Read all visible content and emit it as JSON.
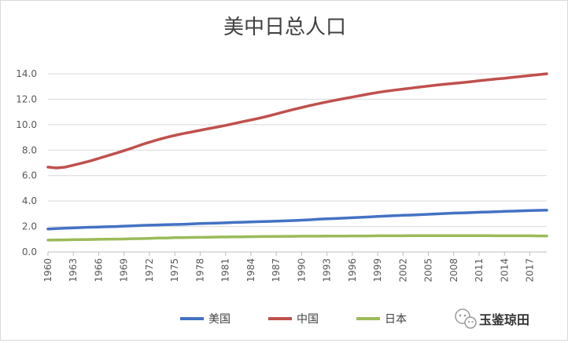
{
  "chart_data": {
    "type": "line",
    "title": "美中日总人口",
    "xlabel": "",
    "ylabel": "",
    "ylim": [
      0,
      14
    ],
    "yticks": [
      "0.0",
      "2.0",
      "4.0",
      "6.0",
      "8.0",
      "10.0",
      "12.0",
      "14.0"
    ],
    "x": [
      1960,
      1961,
      1962,
      1963,
      1964,
      1965,
      1966,
      1967,
      1968,
      1969,
      1970,
      1971,
      1972,
      1973,
      1974,
      1975,
      1976,
      1977,
      1978,
      1979,
      1980,
      1981,
      1982,
      1983,
      1984,
      1985,
      1986,
      1987,
      1988,
      1989,
      1990,
      1991,
      1992,
      1993,
      1994,
      1995,
      1996,
      1997,
      1998,
      1999,
      2000,
      2001,
      2002,
      2003,
      2004,
      2005,
      2006,
      2007,
      2008,
      2009,
      2010,
      2011,
      2012,
      2013,
      2014,
      2015,
      2016,
      2017,
      2018,
      2019
    ],
    "xticks": [
      "1960",
      "1963",
      "1966",
      "1969",
      "1972",
      "1975",
      "1978",
      "1981",
      "1984",
      "1987",
      "1990",
      "1993",
      "1996",
      "1999",
      "2002",
      "2005",
      "2008",
      "2011",
      "2014",
      "2017"
    ],
    "series": [
      {
        "name": "美国",
        "color": "#4472C4",
        "values": [
          1.81,
          1.84,
          1.87,
          1.89,
          1.92,
          1.94,
          1.96,
          1.98,
          2.0,
          2.03,
          2.05,
          2.08,
          2.1,
          2.12,
          2.14,
          2.16,
          2.18,
          2.2,
          2.23,
          2.25,
          2.27,
          2.29,
          2.32,
          2.34,
          2.36,
          2.38,
          2.4,
          2.42,
          2.44,
          2.47,
          2.5,
          2.53,
          2.57,
          2.6,
          2.63,
          2.66,
          2.69,
          2.72,
          2.75,
          2.79,
          2.82,
          2.85,
          2.88,
          2.9,
          2.93,
          2.96,
          2.99,
          3.02,
          3.05,
          3.07,
          3.09,
          3.12,
          3.14,
          3.16,
          3.19,
          3.21,
          3.23,
          3.25,
          3.27,
          3.28
        ]
      },
      {
        "name": "中国",
        "color": "#C0504D",
        "values": [
          6.67,
          6.6,
          6.66,
          6.82,
          6.98,
          7.15,
          7.35,
          7.55,
          7.75,
          7.96,
          8.18,
          8.41,
          8.62,
          8.82,
          9.0,
          9.16,
          9.3,
          9.43,
          9.56,
          9.69,
          9.81,
          9.94,
          10.09,
          10.23,
          10.37,
          10.51,
          10.67,
          10.84,
          11.02,
          11.19,
          11.35,
          11.51,
          11.65,
          11.79,
          11.92,
          12.05,
          12.17,
          12.3,
          12.42,
          12.53,
          12.63,
          12.72,
          12.8,
          12.88,
          12.96,
          13.04,
          13.11,
          13.18,
          13.25,
          13.31,
          13.38,
          13.45,
          13.52,
          13.59,
          13.65,
          13.72,
          13.79,
          13.86,
          13.93,
          14.0
        ]
      },
      {
        "name": "日本",
        "color": "#9BBB59",
        "values": [
          0.93,
          0.94,
          0.95,
          0.96,
          0.97,
          0.98,
          0.99,
          1.0,
          1.01,
          1.02,
          1.04,
          1.05,
          1.07,
          1.09,
          1.1,
          1.12,
          1.13,
          1.14,
          1.15,
          1.16,
          1.17,
          1.18,
          1.19,
          1.19,
          1.2,
          1.21,
          1.22,
          1.22,
          1.23,
          1.23,
          1.24,
          1.24,
          1.24,
          1.25,
          1.25,
          1.25,
          1.26,
          1.26,
          1.26,
          1.27,
          1.27,
          1.27,
          1.27,
          1.28,
          1.28,
          1.28,
          1.28,
          1.28,
          1.28,
          1.28,
          1.28,
          1.28,
          1.28,
          1.27,
          1.27,
          1.27,
          1.27,
          1.27,
          1.26,
          1.26
        ]
      }
    ],
    "legend_position": "bottom",
    "grid": true
  },
  "watermark": {
    "text": "玉鉴琼田",
    "icon": "wechat-icon"
  }
}
